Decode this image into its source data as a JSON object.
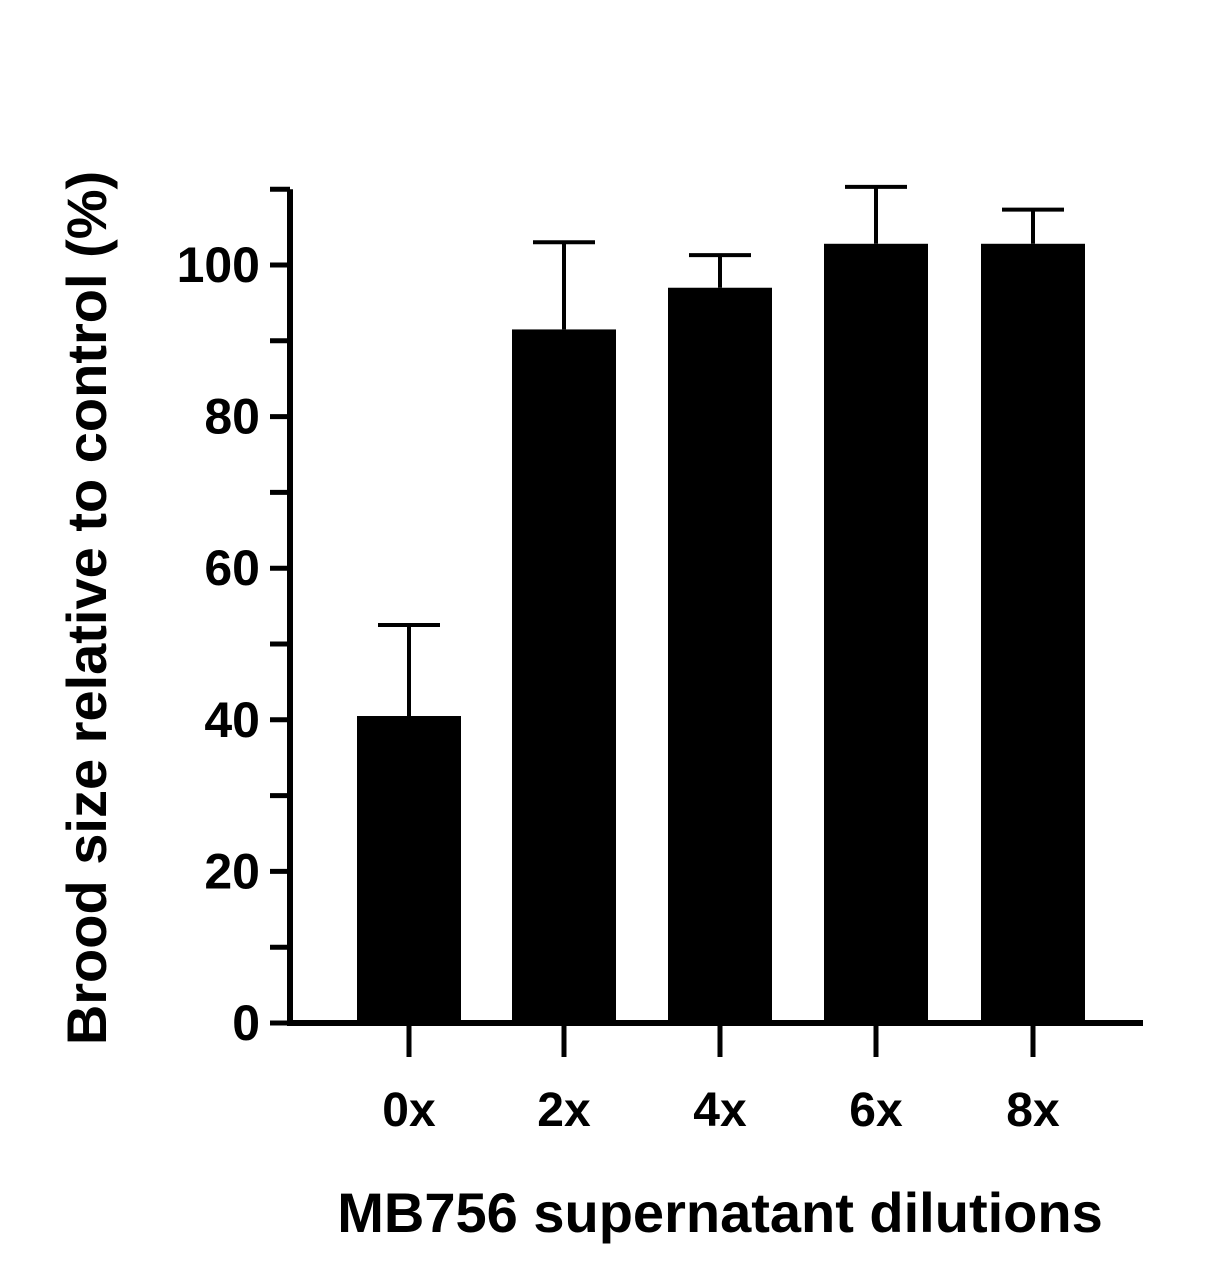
{
  "chart_data": {
    "type": "bar",
    "title": "",
    "xlabel": "MB756 supernatant dilutions",
    "ylabel": "Brood size relative to control (%)",
    "categories": [
      "0x",
      "2x",
      "4x",
      "6x",
      "8x"
    ],
    "values": [
      40.5,
      91.5,
      97,
      102.8,
      102.8
    ],
    "errors": [
      12,
      11.5,
      4.3,
      7.5,
      4.5
    ],
    "ylim": [
      0,
      110
    ],
    "yticks": [
      0,
      20,
      40,
      60,
      80,
      100
    ],
    "ytick_labels": [
      "0",
      "20",
      "40",
      "60",
      "80",
      "100"
    ],
    "minor_ytick_step": 10,
    "grid": false,
    "legend": "none",
    "bar_color": "#000000"
  }
}
